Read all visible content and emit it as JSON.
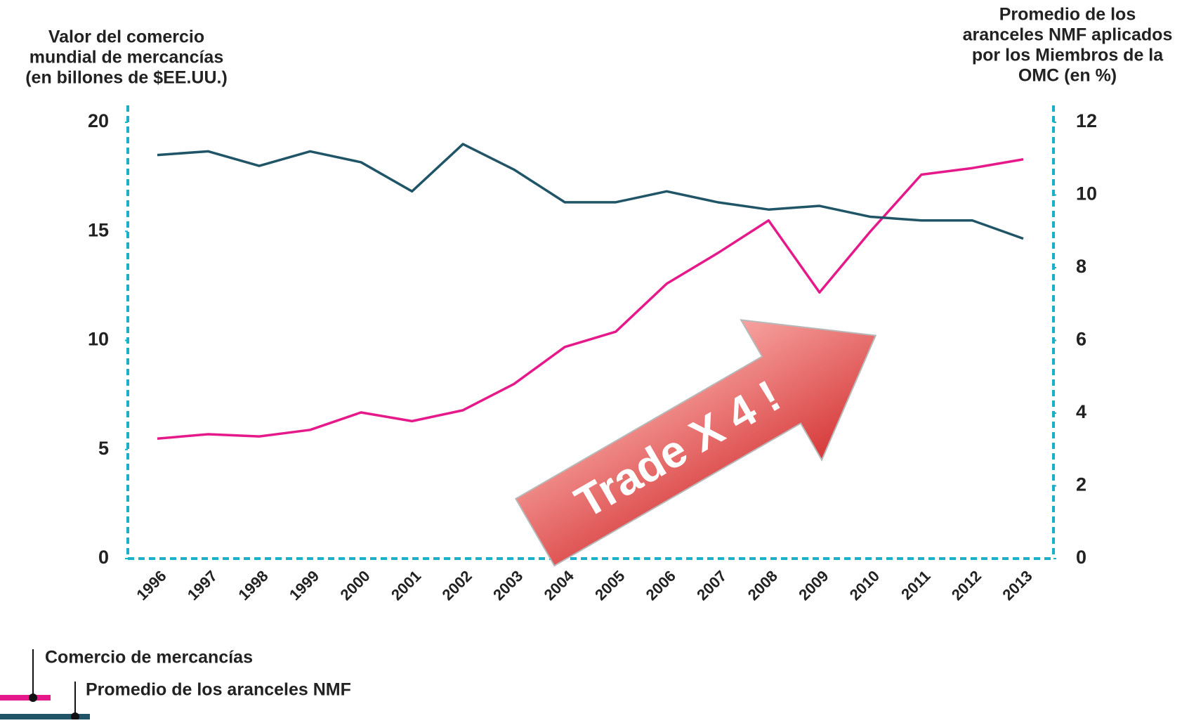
{
  "chart_data": {
    "type": "line",
    "ylabel": [
      "Valor del comercio",
      "mundial de mercancías",
      "(en billones de $EE.UU.)"
    ],
    "y2label": [
      "Promedio de los",
      "aranceles NMF aplicados",
      "por los Miembros de la",
      "OMC (en %)"
    ],
    "categories": [
      "1996",
      "1997",
      "1998",
      "1999",
      "2000",
      "2001",
      "2002",
      "2003",
      "2004",
      "2005",
      "2006",
      "2007",
      "2008",
      "2009",
      "2010",
      "2011",
      "2012",
      "2013"
    ],
    "series": [
      {
        "name": "Comercio de mercancías",
        "color": "#e6198a",
        "values": [
          5.5,
          5.7,
          5.6,
          5.9,
          6.7,
          6.3,
          6.8,
          8.0,
          9.7,
          10.4,
          12.6,
          14.0,
          15.5,
          12.2,
          15.0,
          17.6,
          17.9,
          18.3
        ]
      },
      {
        "name": "Promedio de los aranceles NMF",
        "color": "#1f5566",
        "axis": "y2",
        "values": [
          11.1,
          11.2,
          10.8,
          11.2,
          10.9,
          10.1,
          11.4,
          10.7,
          9.8,
          9.8,
          10.1,
          9.8,
          9.6,
          9.7,
          9.4,
          9.3,
          9.3,
          8.8
        ]
      }
    ],
    "ylim": [
      0,
      20
    ],
    "yticks": [
      0,
      5,
      10,
      15,
      20
    ],
    "y2lim": [
      0,
      12
    ],
    "y2ticks": [
      0,
      2,
      4,
      6,
      8,
      10,
      12
    ],
    "axis_color": "#1ab0c8",
    "annotation": "Trade X 4 !"
  }
}
